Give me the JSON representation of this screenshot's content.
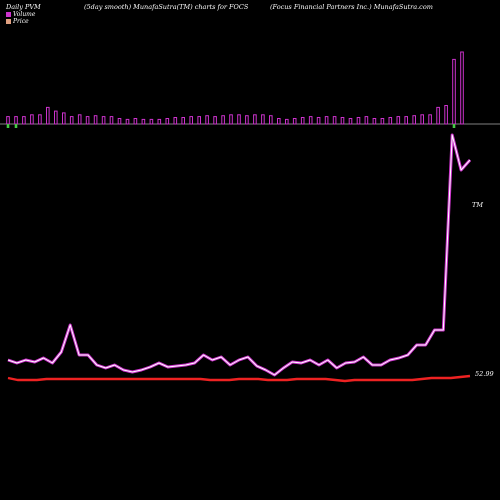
{
  "header": {
    "left": "Daily PVM",
    "center": "(5day smooth) MunafaSutra(TM) charts for FOCS",
    "right": "(Focus Financial Partners Inc.) MunafaSutra.com"
  },
  "legend": {
    "volume_label": "Volume",
    "price_label": "Price",
    "volume_color": "#cc33cc",
    "price_color": "#e0a080"
  },
  "chart_data": {
    "type": "bar",
    "volume_bars": [
      8,
      8,
      8,
      10,
      10,
      18,
      14,
      12,
      8,
      10,
      8,
      9,
      8,
      8,
      6,
      5,
      6,
      5,
      5,
      5,
      6,
      7,
      7,
      8,
      8,
      9,
      8,
      9,
      10,
      10,
      9,
      10,
      10,
      9,
      6,
      5,
      6,
      7,
      8,
      7,
      8,
      8,
      7,
      6,
      7,
      8,
      6,
      6,
      7,
      8,
      8,
      9,
      10,
      10,
      18,
      20,
      70,
      78
    ],
    "volume_down": [
      true,
      true,
      false,
      false,
      false,
      false,
      false,
      false,
      false,
      false,
      false,
      false,
      false,
      false,
      false,
      false,
      false,
      false,
      false,
      false,
      false,
      false,
      false,
      false,
      false,
      false,
      false,
      false,
      false,
      false,
      false,
      false,
      false,
      false,
      false,
      false,
      false,
      false,
      false,
      false,
      false,
      false,
      false,
      false,
      false,
      false,
      false,
      false,
      false,
      false,
      false,
      false,
      false,
      false,
      false,
      false,
      true,
      false
    ],
    "pvm_line": [
      360,
      363,
      360,
      362,
      358,
      363,
      352,
      325,
      355,
      355,
      365,
      368,
      365,
      370,
      372,
      370,
      367,
      363,
      367,
      366,
      365,
      363,
      355,
      360,
      357,
      365,
      360,
      357,
      366,
      370,
      375,
      368,
      362,
      363,
      360,
      365,
      360,
      368,
      363,
      362,
      357,
      365,
      365,
      360,
      358,
      355,
      345,
      345,
      330,
      330,
      135,
      170,
      160
    ],
    "price_line": [
      100,
      98,
      98,
      98,
      99,
      99,
      99,
      99,
      99,
      99,
      99,
      99,
      99,
      99,
      99,
      99,
      99,
      99,
      99,
      99,
      99,
      98,
      98,
      98,
      99,
      99,
      99,
      98,
      98,
      98,
      99,
      99,
      99,
      99,
      98,
      97,
      98,
      98,
      98,
      98,
      98,
      98,
      98,
      99,
      100,
      100,
      100,
      101,
      102
    ],
    "price_label": "52.99",
    "pvm_label": "TM"
  }
}
